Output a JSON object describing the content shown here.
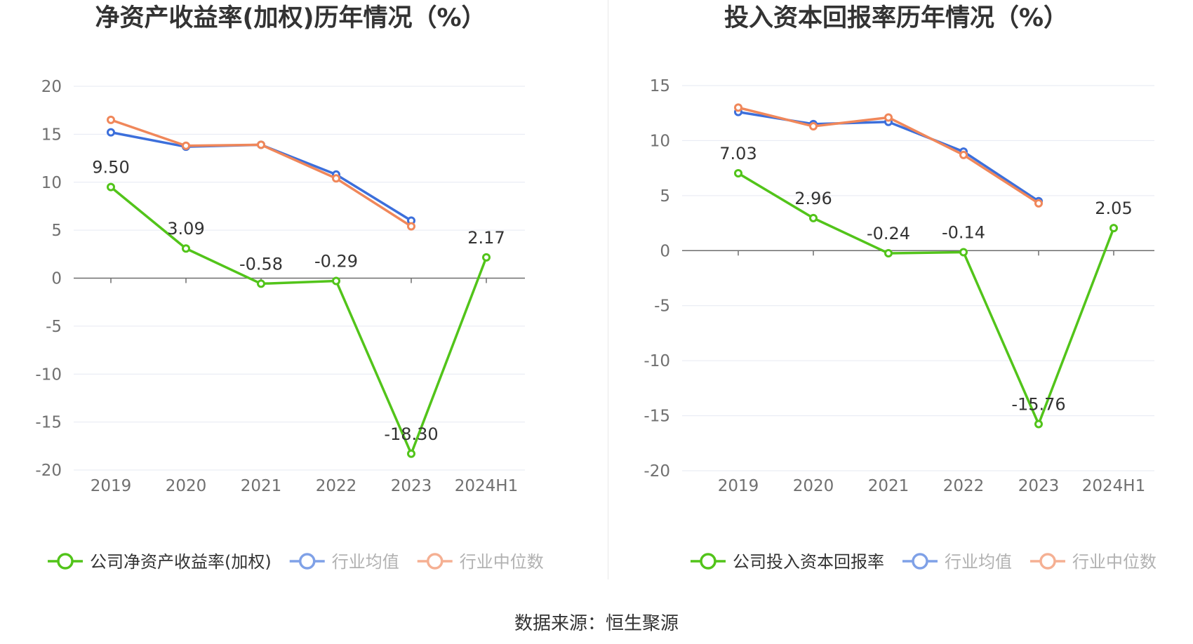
{
  "colors": {
    "company": "#52c41a",
    "industry_mean": "#3c6fdb",
    "industry_median": "#f0875a",
    "grid": "#e6e9f2",
    "zero_axis": "#6e6e6e"
  },
  "source_text": "数据来源：恒生聚源",
  "chart_data": [
    {
      "type": "line",
      "title": "净资产收益率(加权)历年情况（%）",
      "categories": [
        "2019",
        "2020",
        "2021",
        "2022",
        "2023",
        "2024H1"
      ],
      "yticks": [
        "20",
        "15",
        "10",
        "5",
        "0",
        "-5",
        "-10",
        "-15",
        "-20"
      ],
      "ylim": [
        -20,
        20
      ],
      "grid": true,
      "legend_position": "bottom",
      "series": [
        {
          "name": "公司净资产收益率(加权)",
          "color_key": "company",
          "values": [
            9.5,
            3.09,
            -0.58,
            -0.29,
            -18.3,
            2.17
          ],
          "labels": [
            "9.50",
            "3.09",
            "-0.58",
            "-0.29",
            "-18.30",
            "2.17"
          ]
        },
        {
          "name": "行业均值",
          "color_key": "industry_mean",
          "values": [
            15.2,
            13.7,
            13.9,
            10.8,
            6.0,
            null
          ]
        },
        {
          "name": "行业中位数",
          "color_key": "industry_median",
          "values": [
            16.5,
            13.8,
            13.9,
            10.4,
            5.4,
            null
          ]
        }
      ]
    },
    {
      "type": "line",
      "title": "投入资本回报率历年情况（%）",
      "categories": [
        "2019",
        "2020",
        "2021",
        "2022",
        "2023",
        "2024H1"
      ],
      "yticks": [
        "15",
        "10",
        "5",
        "0",
        "-5",
        "-10",
        "-15",
        "-20"
      ],
      "ylim": [
        -20,
        15
      ],
      "grid": true,
      "legend_position": "bottom",
      "series": [
        {
          "name": "公司投入资本回报率",
          "color_key": "company",
          "values": [
            7.03,
            2.96,
            -0.24,
            -0.14,
            -15.76,
            2.05
          ],
          "labels": [
            "7.03",
            "2.96",
            "-0.24",
            "-0.14",
            "-15.76",
            "2.05"
          ]
        },
        {
          "name": "行业均值",
          "color_key": "industry_mean",
          "values": [
            12.6,
            11.5,
            11.7,
            9.0,
            4.5,
            null
          ]
        },
        {
          "name": "行业中位数",
          "color_key": "industry_median",
          "values": [
            13.0,
            11.3,
            12.1,
            8.7,
            4.3,
            null
          ]
        }
      ]
    }
  ]
}
